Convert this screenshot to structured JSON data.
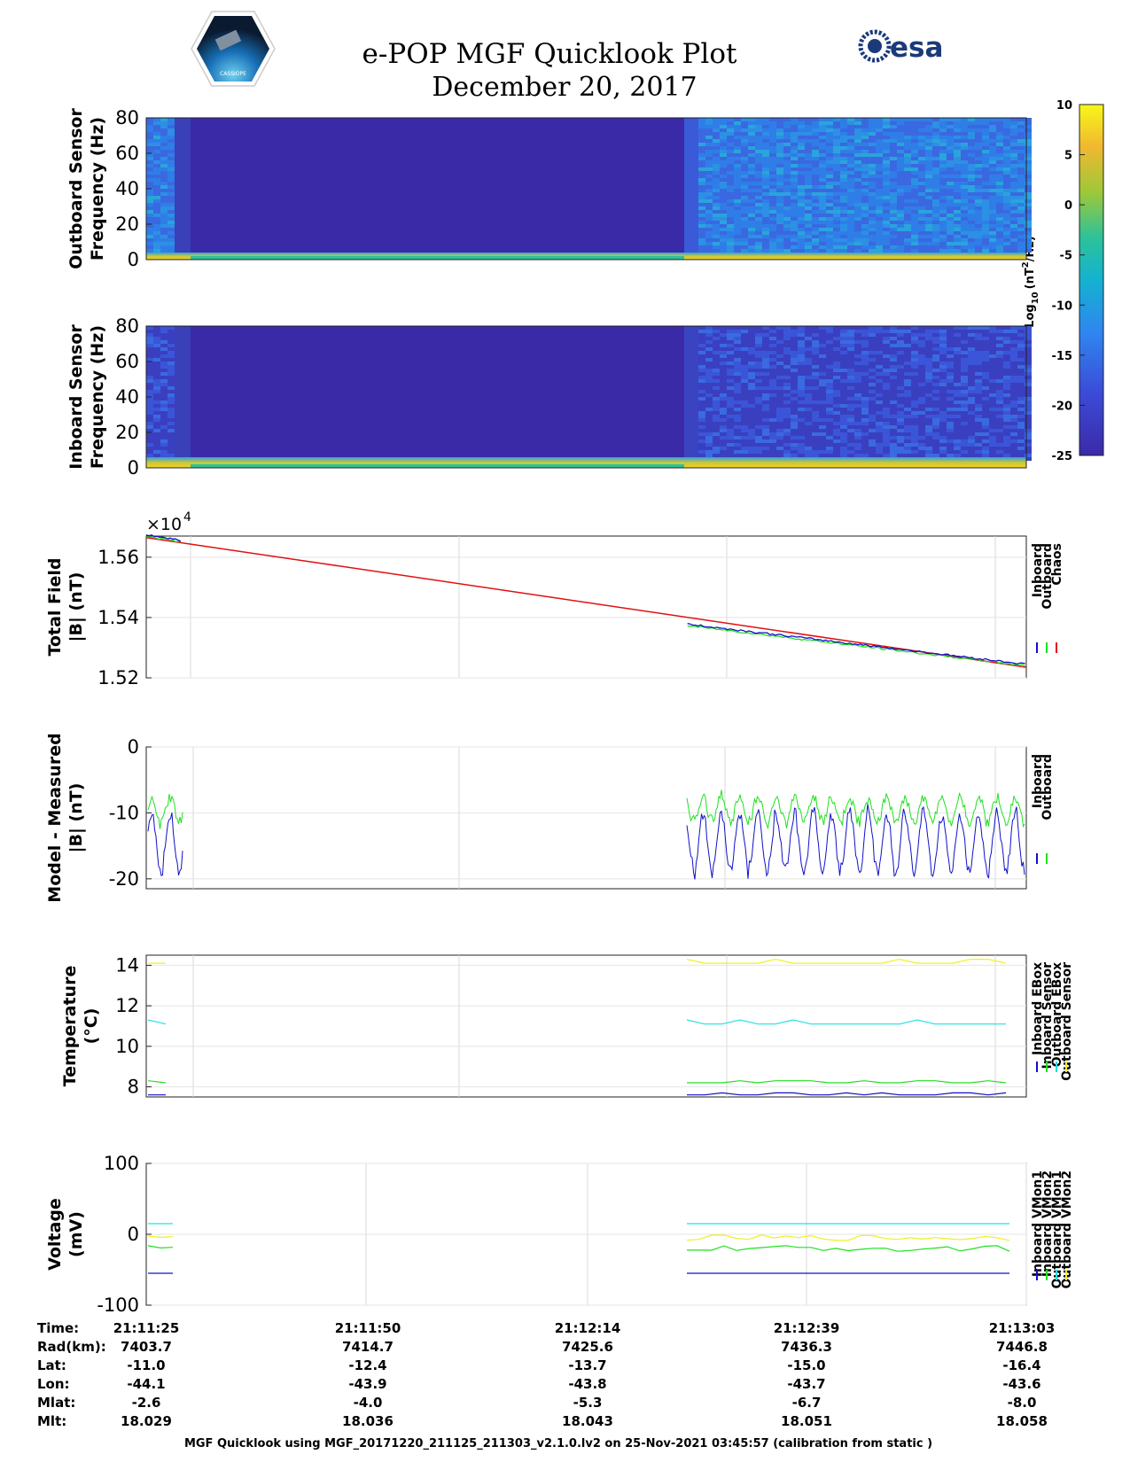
{
  "header": {
    "title": "e-POP MGF Quicklook Plot",
    "subtitle": "December 20, 2017",
    "logo_left_text": "CASSIOPE",
    "logo_right_text": "esa"
  },
  "colorbar": {
    "ticks": [
      "10",
      "5",
      "0",
      "-5",
      "-10",
      "-15",
      "-20",
      "-25"
    ],
    "label_base": "Log",
    "label_sub": "10",
    "label_unit": "(nT",
    "label_sup": "2",
    "label_tail": "/Hz)"
  },
  "colors": {
    "inboard": "#1010c8",
    "outboard": "#20e020",
    "chaos": "#e01010",
    "cyan": "#20e0e0",
    "yellow": "#f0f020",
    "spec_dark": "#3a2aa8",
    "spec_mid": "#3f74e8"
  },
  "chart_data": [
    {
      "type": "heatmap",
      "ylabel_1": "Outboard Sensor",
      "ylabel_2": "Frequency (Hz)",
      "yticks": [
        "80",
        "60",
        "40",
        "20",
        "0"
      ],
      "ylim": [
        0,
        80
      ],
      "zlim": [
        -25,
        10
      ],
      "data_segments": [
        [
          21.11417,
          21.1175
        ],
        [
          21.12778,
          21.13083
        ]
      ],
      "gap_level": -25
    },
    {
      "type": "heatmap",
      "ylabel_1": "Inboard Sensor",
      "ylabel_2": "Frequency (Hz)",
      "yticks": [
        "80",
        "60",
        "40",
        "20",
        "0"
      ],
      "ylim": [
        0,
        80
      ],
      "zlim": [
        -25,
        10
      ]
    },
    {
      "type": "line",
      "ylabel_1": "Total Field",
      "ylabel_2": "|B| (nT)",
      "exponent_label": "×10",
      "exponent_power": "4",
      "yticks": [
        "1.56",
        "1.54",
        "1.52"
      ],
      "ylim": [
        1.52,
        1.567
      ],
      "legend": [
        "Inboard",
        "Outboard",
        "Chaos"
      ],
      "series": [
        {
          "name": "Chaos",
          "x": [
            0,
            1
          ],
          "values": [
            1.5665,
            1.5235
          ]
        },
        {
          "name": "Inboard",
          "segments": [
            [
              0.0,
              0.04,
              1.5675,
              1.5655
            ],
            [
              0.615,
              1.0,
              1.5378,
              1.5245
            ]
          ]
        },
        {
          "name": "Outboard",
          "segments": [
            [
              0.0,
              0.04,
              1.567,
              1.565
            ],
            [
              0.615,
              1.0,
              1.5373,
              1.524
            ]
          ]
        }
      ]
    },
    {
      "type": "line",
      "ylabel_1": "Model - Measured",
      "ylabel_2": "|B| (nT)",
      "yticks": [
        "0",
        "-10",
        "-20"
      ],
      "ylim": [
        -21.5,
        0
      ],
      "legend": [
        "Inboard",
        "Outboard"
      ],
      "series": [
        {
          "name": "Inboard",
          "mean": -14.5,
          "amplitude": 5.5
        },
        {
          "name": "Outboard",
          "mean": -9.5,
          "amplitude": 2.5
        }
      ]
    },
    {
      "type": "line",
      "ylabel_1": "Temperature",
      "ylabel_2": "(°C)",
      "yticks": [
        "14",
        "12",
        "10",
        "8"
      ],
      "ylim": [
        7.5,
        14.5
      ],
      "legend": [
        "Inboard EBox",
        "Inboard Sensor",
        "Outboard EBox",
        "Outboard Sensor"
      ],
      "series": [
        {
          "name": "Inboard EBox",
          "values": [
            7.6,
            7.7
          ]
        },
        {
          "name": "Inboard Sensor",
          "values": [
            8.2,
            8.3
          ]
        },
        {
          "name": "Outboard EBox",
          "values": [
            11.1,
            11.3
          ]
        },
        {
          "name": "Outboard Sensor",
          "values": [
            14.1,
            14.3
          ]
        }
      ]
    },
    {
      "type": "line",
      "ylabel_1": "Voltage",
      "ylabel_2": "(mV)",
      "yticks": [
        "100",
        "0",
        "-100"
      ],
      "ylim": [
        -100,
        100
      ],
      "legend": [
        "Inboard VMon1",
        "Inboard VMon2",
        "Outboard VMon1",
        "Outboard VMon2"
      ],
      "series": [
        {
          "name": "Inboard VMon1",
          "values": [
            -55
          ]
        },
        {
          "name": "Inboard VMon2",
          "values": [
            15
          ]
        },
        {
          "name": "Outboard VMon1",
          "values": [
            -20
          ]
        },
        {
          "name": "Outboard VMon2",
          "values": [
            -5
          ]
        }
      ]
    }
  ],
  "footer_table": {
    "row_labels": [
      "Time:",
      "Rad(km):",
      "Lat:",
      "Lon:",
      "Mlat:",
      "Mlt:"
    ],
    "columns": [
      [
        "21:11:25",
        "7403.7",
        "-11.0",
        "-44.1",
        "-2.6",
        "18.029"
      ],
      [
        "21:11:50",
        "7414.7",
        "-12.4",
        "-43.9",
        "-4.0",
        "18.036"
      ],
      [
        "21:12:14",
        "7425.6",
        "-13.7",
        "-43.8",
        "-5.3",
        "18.043"
      ],
      [
        "21:12:39",
        "7436.3",
        "-15.0",
        "-43.7",
        "-6.7",
        "18.051"
      ],
      [
        "21:13:03",
        "7446.8",
        "-16.4",
        "-43.6",
        "-8.0",
        "18.058"
      ]
    ]
  },
  "footnote": "MGF Quicklook using MGF_20171220_211125_211303_v2.1.0.lv2 on 25-Nov-2021 03:45:57 (calibration from static )"
}
